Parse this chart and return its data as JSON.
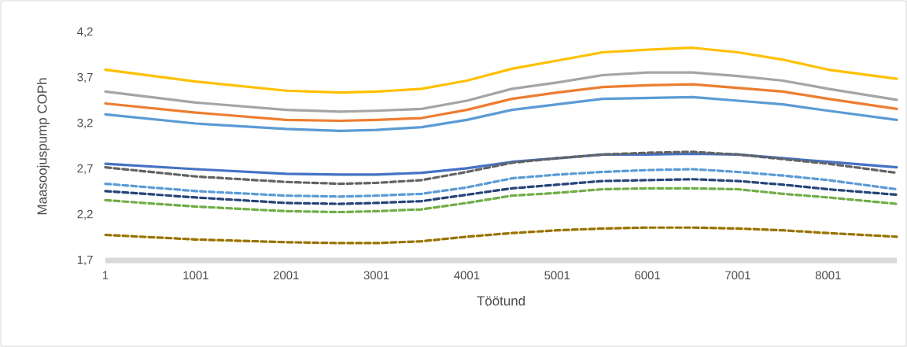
{
  "chart_data": {
    "type": "line",
    "xlabel": "Töötund",
    "ylabel": "Maasoojuspump COPh",
    "x": [
      1,
      1001,
      2001,
      2601,
      3001,
      3501,
      4001,
      4501,
      5001,
      5501,
      6001,
      6501,
      7001,
      7501,
      8001,
      8760
    ],
    "xlim": [
      1,
      8760
    ],
    "xticks": [
      1,
      1001,
      2001,
      3001,
      4001,
      5001,
      6001,
      7001,
      8001
    ],
    "ylim": [
      1.7,
      4.2
    ],
    "yticks": [
      {
        "value": 1.7,
        "label": "1,7"
      },
      {
        "value": 2.2,
        "label": "2,2"
      },
      {
        "value": 2.7,
        "label": "2,7"
      },
      {
        "value": 3.2,
        "label": "3,2"
      },
      {
        "value": 3.7,
        "label": "3,7"
      },
      {
        "value": 4.2,
        "label": "4,2"
      }
    ],
    "grid": false,
    "marker": "none",
    "series": [
      {
        "color": "#ffc000",
        "line_style": "solid",
        "values": [
          3.79,
          3.66,
          3.56,
          3.54,
          3.55,
          3.58,
          3.67,
          3.8,
          3.89,
          3.98,
          4.01,
          4.03,
          3.98,
          3.9,
          3.79,
          3.69
        ]
      },
      {
        "color": "#a5a5a5",
        "line_style": "solid",
        "values": [
          3.55,
          3.43,
          3.35,
          3.33,
          3.34,
          3.36,
          3.45,
          3.58,
          3.65,
          3.73,
          3.76,
          3.76,
          3.72,
          3.67,
          3.58,
          3.46
        ]
      },
      {
        "color": "#ed7d31",
        "line_style": "solid",
        "values": [
          3.42,
          3.32,
          3.24,
          3.23,
          3.24,
          3.26,
          3.35,
          3.47,
          3.54,
          3.6,
          3.62,
          3.63,
          3.59,
          3.55,
          3.47,
          3.36
        ]
      },
      {
        "color": "#5b9bd5",
        "line_style": "solid",
        "values": [
          3.3,
          3.2,
          3.14,
          3.12,
          3.13,
          3.16,
          3.24,
          3.35,
          3.41,
          3.47,
          3.48,
          3.49,
          3.45,
          3.41,
          3.34,
          3.24
        ]
      },
      {
        "color": "#4472c4",
        "line_style": "solid",
        "values": [
          2.76,
          2.7,
          2.65,
          2.64,
          2.64,
          2.66,
          2.71,
          2.78,
          2.82,
          2.86,
          2.86,
          2.87,
          2.86,
          2.82,
          2.78,
          2.72
        ]
      },
      {
        "color": "#636363",
        "line_style": "dashed",
        "values": [
          2.72,
          2.62,
          2.56,
          2.54,
          2.55,
          2.58,
          2.67,
          2.77,
          2.82,
          2.86,
          2.88,
          2.89,
          2.86,
          2.81,
          2.76,
          2.66
        ]
      },
      {
        "color": "#5b9bd5",
        "line_style": "dashed",
        "values": [
          2.54,
          2.46,
          2.41,
          2.4,
          2.41,
          2.43,
          2.5,
          2.6,
          2.64,
          2.67,
          2.69,
          2.7,
          2.67,
          2.63,
          2.58,
          2.48
        ]
      },
      {
        "color": "#264478",
        "line_style": "dashed",
        "values": [
          2.46,
          2.39,
          2.33,
          2.32,
          2.33,
          2.35,
          2.42,
          2.49,
          2.53,
          2.57,
          2.58,
          2.59,
          2.57,
          2.53,
          2.48,
          2.42
        ]
      },
      {
        "color": "#70ad47",
        "line_style": "dashed",
        "values": [
          2.36,
          2.29,
          2.24,
          2.23,
          2.24,
          2.26,
          2.33,
          2.41,
          2.44,
          2.48,
          2.49,
          2.49,
          2.48,
          2.43,
          2.39,
          2.32
        ]
      },
      {
        "color": "#997300",
        "line_style": "dashed",
        "values": [
          1.98,
          1.93,
          1.9,
          1.89,
          1.89,
          1.91,
          1.96,
          2.0,
          2.03,
          2.05,
          2.06,
          2.06,
          2.05,
          2.03,
          2.0,
          1.96
        ]
      }
    ]
  }
}
